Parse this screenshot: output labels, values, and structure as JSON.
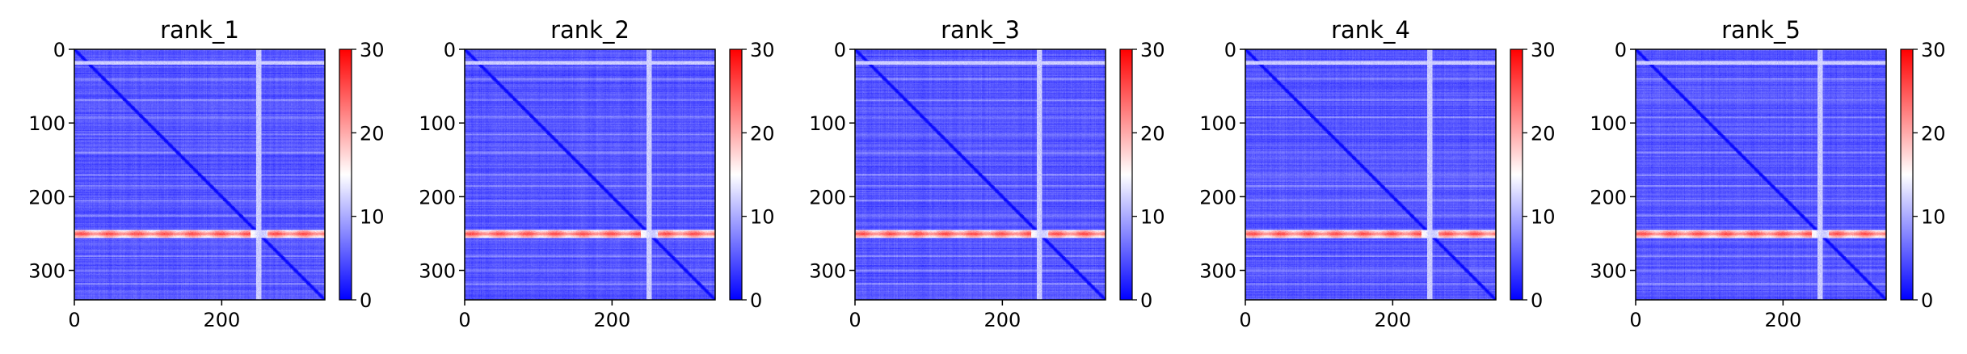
{
  "figure": {
    "background": "#ffffff"
  },
  "colormap": {
    "name": "bwr",
    "low": "#0000ff",
    "mid": "#ffffff",
    "high": "#ff0000"
  },
  "chart_data": [
    {
      "type": "heatmap",
      "title": "rank_1",
      "xlim": [
        0,
        340
      ],
      "ylim": [
        340,
        0
      ],
      "xticks": [
        0,
        200
      ],
      "yticks": [
        0,
        100,
        200,
        300
      ],
      "colorbar": {
        "vmin": 0,
        "vmax": 30,
        "ticks": [
          0,
          10,
          20,
          30
        ]
      },
      "features": {
        "n_residues": 340,
        "base_level": 5,
        "diagonal_level": 0,
        "bright_row": 250,
        "bright_row_level": 24,
        "bright_col": 250,
        "bright_col_level": 12,
        "faint_row": 18,
        "faint_row_level": 12
      }
    },
    {
      "type": "heatmap",
      "title": "rank_2",
      "xlim": [
        0,
        340
      ],
      "ylim": [
        340,
        0
      ],
      "xticks": [
        0,
        200
      ],
      "yticks": [
        0,
        100,
        200,
        300
      ],
      "colorbar": {
        "vmin": 0,
        "vmax": 30,
        "ticks": [
          0,
          10,
          20,
          30
        ]
      },
      "features": {
        "n_residues": 340,
        "base_level": 5,
        "diagonal_level": 0,
        "bright_row": 250,
        "bright_row_level": 24,
        "bright_col": 250,
        "bright_col_level": 12,
        "faint_row": 18,
        "faint_row_level": 12
      }
    },
    {
      "type": "heatmap",
      "title": "rank_3",
      "xlim": [
        0,
        340
      ],
      "ylim": [
        340,
        0
      ],
      "xticks": [
        0,
        200
      ],
      "yticks": [
        0,
        100,
        200,
        300
      ],
      "colorbar": {
        "vmin": 0,
        "vmax": 30,
        "ticks": [
          0,
          10,
          20,
          30
        ]
      },
      "features": {
        "n_residues": 340,
        "base_level": 5,
        "diagonal_level": 0,
        "bright_row": 250,
        "bright_row_level": 24,
        "bright_col": 250,
        "bright_col_level": 12,
        "faint_row": 18,
        "faint_row_level": 12
      }
    },
    {
      "type": "heatmap",
      "title": "rank_4",
      "xlim": [
        0,
        340
      ],
      "ylim": [
        340,
        0
      ],
      "xticks": [
        0,
        200
      ],
      "yticks": [
        0,
        100,
        200,
        300
      ],
      "colorbar": {
        "vmin": 0,
        "vmax": 30,
        "ticks": [
          0,
          10,
          20,
          30
        ]
      },
      "features": {
        "n_residues": 340,
        "base_level": 5,
        "diagonal_level": 0,
        "bright_row": 250,
        "bright_row_level": 24,
        "bright_col": 250,
        "bright_col_level": 12,
        "faint_row": 18,
        "faint_row_level": 12
      }
    },
    {
      "type": "heatmap",
      "title": "rank_5",
      "xlim": [
        0,
        340
      ],
      "ylim": [
        340,
        0
      ],
      "xticks": [
        0,
        200
      ],
      "yticks": [
        0,
        100,
        200,
        300
      ],
      "colorbar": {
        "vmin": 0,
        "vmax": 30,
        "ticks": [
          0,
          10,
          20,
          30
        ]
      },
      "features": {
        "n_residues": 340,
        "base_level": 5,
        "diagonal_level": 0,
        "bright_row": 250,
        "bright_row_level": 24,
        "bright_col": 250,
        "bright_col_level": 12,
        "faint_row": 18,
        "faint_row_level": 12
      }
    }
  ]
}
